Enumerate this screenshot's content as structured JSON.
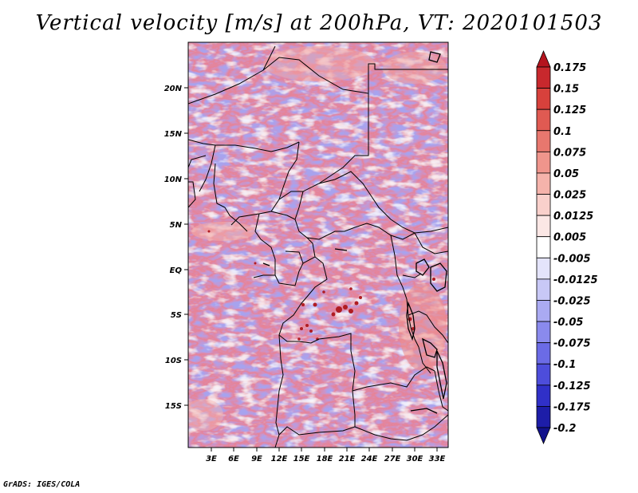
{
  "title": "Vertical velocity [m/s] at 200hPa, VT: 2020101503",
  "credit": "GrADS: IGES/COLA",
  "map": {
    "variable": "Vertical velocity",
    "units": "m/s",
    "level": "200hPa",
    "valid_time": "2020101503",
    "lon_labels": [
      "3E",
      "6E",
      "9E",
      "12E",
      "15E",
      "18E",
      "21E",
      "24E",
      "27E",
      "30E",
      "33E"
    ],
    "lat_labels": [
      "20N",
      "15N",
      "10N",
      "5N",
      "EQ",
      "5S",
      "10S",
      "15S"
    ]
  },
  "colorbar": {
    "levels": [
      "0.175",
      "0.15",
      "0.125",
      "0.1",
      "0.075",
      "0.05",
      "0.025",
      "0.0125",
      "0.005",
      "-0.005",
      "-0.0125",
      "-0.025",
      "-0.05",
      "-0.075",
      "-0.1",
      "-0.125",
      "-0.175",
      "-0.2"
    ],
    "colors": [
      "#b4141e",
      "#c8282d",
      "#d7413c",
      "#e05a52",
      "#e8776e",
      "#ef958c",
      "#f5b3ab",
      "#f9d0cb",
      "#fbe7e5",
      "#ffffff",
      "#e4e4fb",
      "#c8c8f6",
      "#aaaaf2",
      "#8a8aed",
      "#6b6be6",
      "#4d4ddb",
      "#3030c8",
      "#1d1da8",
      "#12128c"
    ]
  }
}
